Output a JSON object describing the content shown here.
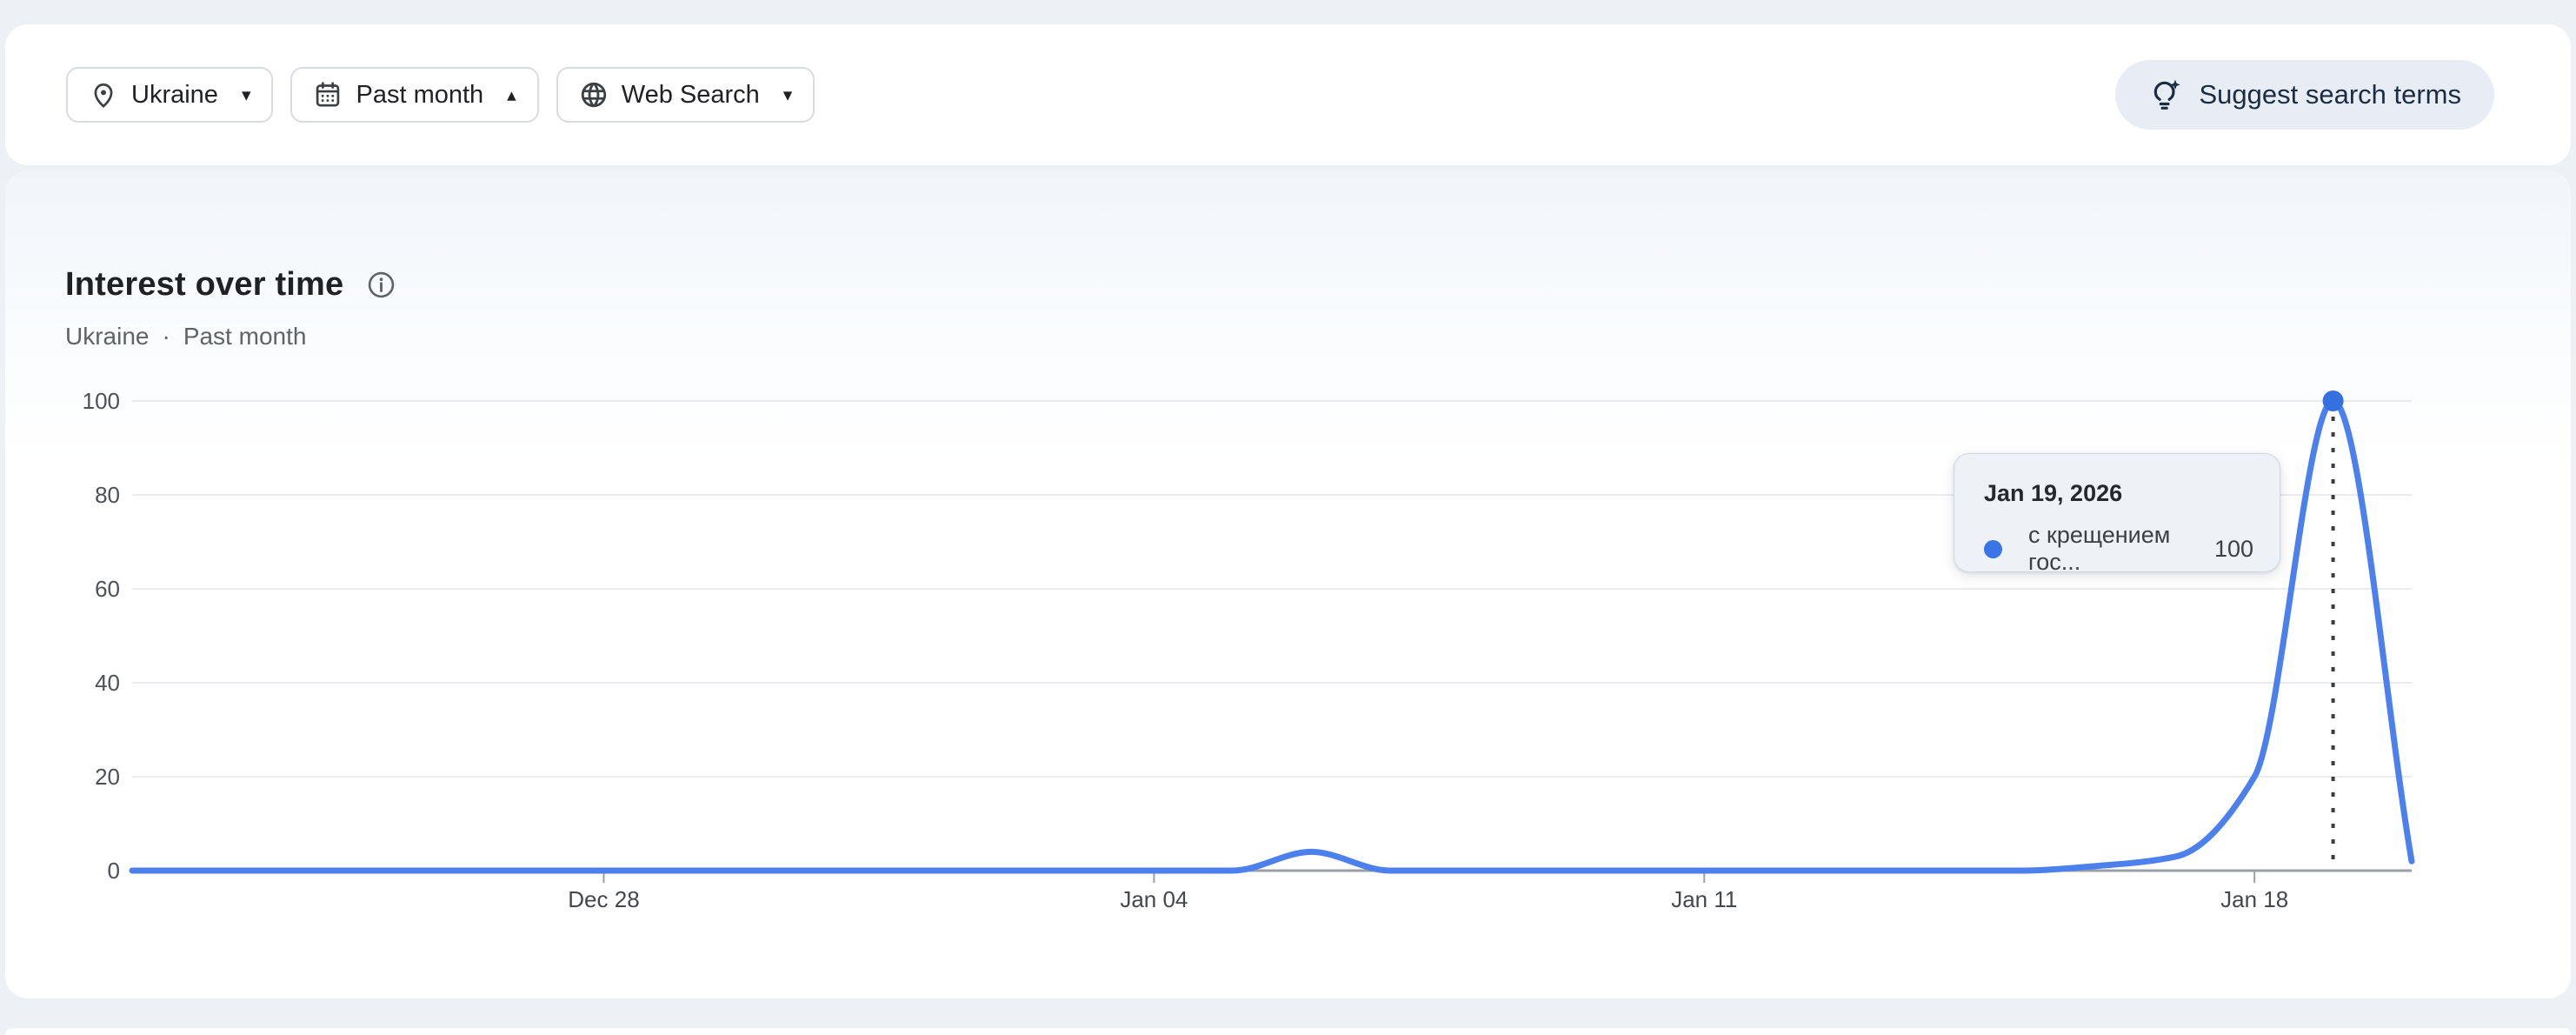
{
  "page": {
    "background": "#edf1f6"
  },
  "header": {
    "filters": [
      {
        "label": "Ukraine",
        "icon": "location-pin-icon",
        "chevron": "chevron-down-icon"
      },
      {
        "label": "Past month",
        "icon": "calendar-icon",
        "chevron": "chevron-up-icon"
      },
      {
        "label": "Web Search",
        "icon": "globe-icon",
        "chevron": "chevron-down-icon"
      }
    ],
    "suggest_button": {
      "label": "Suggest search terms",
      "icon": "lightbulb-spark-icon"
    }
  },
  "section": {
    "title": "Interest over time",
    "info_icon": "info-icon",
    "subtitle_location": "Ukraine",
    "subtitle_separator": "·",
    "subtitle_range": "Past month"
  },
  "tooltip": {
    "date": "Jan 19, 2026",
    "series_label": "с крещением гос...",
    "value": "100",
    "dot_color": "#3b73e8"
  },
  "chart_data": {
    "type": "line",
    "title": "Interest over time",
    "x_dates": [
      "Dec 22",
      "Dec 23",
      "Dec 24",
      "Dec 25",
      "Dec 26",
      "Dec 27",
      "Dec 28",
      "Dec 29",
      "Dec 30",
      "Dec 31",
      "Jan 01",
      "Jan 02",
      "Jan 03",
      "Jan 04",
      "Jan 05",
      "Jan 06",
      "Jan 07",
      "Jan 08",
      "Jan 09",
      "Jan 10",
      "Jan 11",
      "Jan 12",
      "Jan 13",
      "Jan 14",
      "Jan 15",
      "Jan 16",
      "Jan 17",
      "Jan 18",
      "Jan 19",
      "Jan 20"
    ],
    "values": [
      0,
      0,
      0,
      0,
      0,
      0,
      0,
      0,
      0,
      0,
      0,
      0,
      0,
      0,
      0,
      4,
      0,
      0,
      0,
      0,
      0,
      0,
      0,
      0,
      0,
      1,
      3,
      20,
      100,
      2
    ],
    "x_tick_labels": [
      "Dec 28",
      "Jan 04",
      "Jan 11",
      "Jan 18"
    ],
    "x_tick_indices": [
      6,
      13,
      20,
      27
    ],
    "y_ticks": [
      0,
      20,
      40,
      60,
      80,
      100
    ],
    "y_tick_labels": [
      "0",
      "20",
      "40",
      "60",
      "80",
      "100"
    ],
    "ylim": [
      0,
      100
    ],
    "grid": true,
    "legend_position": "none",
    "line_color": "#4c80ec",
    "dot_color": "#3470e0",
    "highlight": {
      "index": 28,
      "date": "Jan 19, 2026",
      "value": 100
    }
  }
}
